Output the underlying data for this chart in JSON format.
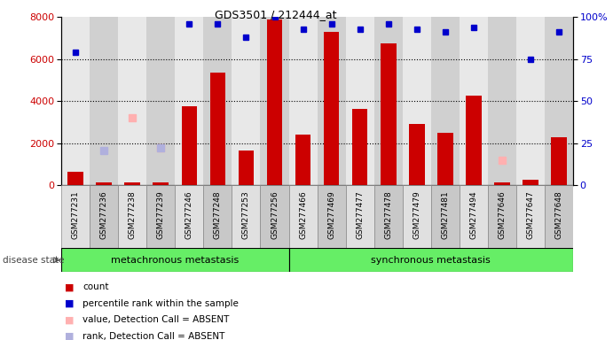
{
  "title": "GDS3501 / 212444_at",
  "samples": [
    "GSM277231",
    "GSM277236",
    "GSM277238",
    "GSM277239",
    "GSM277246",
    "GSM277248",
    "GSM277253",
    "GSM277256",
    "GSM277466",
    "GSM277469",
    "GSM277477",
    "GSM277478",
    "GSM277479",
    "GSM277481",
    "GSM277494",
    "GSM277646",
    "GSM277647",
    "GSM277648"
  ],
  "counts": [
    650,
    130,
    150,
    120,
    3750,
    5350,
    1650,
    7900,
    2400,
    7300,
    3650,
    6750,
    2900,
    2500,
    4250,
    120,
    280,
    2300
  ],
  "percentile_ranks": [
    79,
    null,
    null,
    null,
    96,
    96,
    88,
    100,
    93,
    96,
    93,
    96,
    93,
    91,
    94,
    null,
    75,
    91
  ],
  "absent_values": [
    null,
    null,
    3200,
    1800,
    null,
    null,
    null,
    null,
    null,
    null,
    null,
    null,
    null,
    null,
    null,
    1200,
    null,
    null
  ],
  "absent_ranks": [
    null,
    1650,
    null,
    1800,
    null,
    null,
    null,
    null,
    null,
    null,
    null,
    null,
    null,
    null,
    null,
    null,
    null,
    null
  ],
  "group1_label": "metachronous metastasis",
  "group1_count": 8,
  "group2_label": "synchronous metastasis",
  "bar_color": "#cc0000",
  "percentile_color": "#0000cc",
  "absent_val_color": "#ffb0b0",
  "absent_rank_color": "#b0b0dd",
  "ylim_left": [
    0,
    8000
  ],
  "ylim_right": [
    0,
    100
  ],
  "yticks_left": [
    0,
    2000,
    4000,
    6000,
    8000
  ],
  "yticks_right": [
    0,
    25,
    50,
    75,
    100
  ],
  "background_color": "#ffffff",
  "plot_bg_color": "#e8e8e8",
  "col_bg_even": "#d8d8d8",
  "col_bg_odd": "#c8c8c8",
  "green_color": "#66ee66"
}
